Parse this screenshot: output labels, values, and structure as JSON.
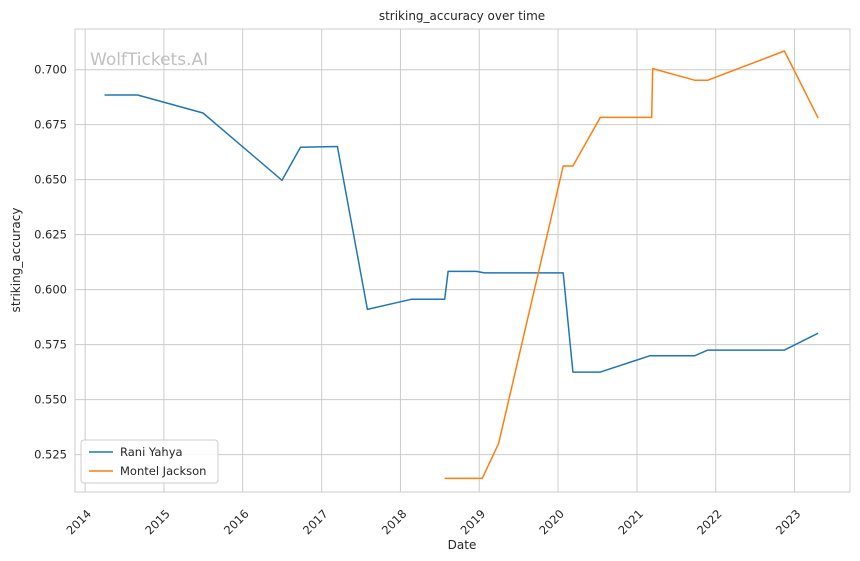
{
  "chart_data": {
    "type": "line",
    "title": "striking_accuracy over time",
    "xlabel": "Date",
    "ylabel": "striking_accuracy",
    "watermark": "WolfTickets.AI",
    "x_ticks": [
      "2014",
      "2015",
      "2016",
      "2017",
      "2018",
      "2019",
      "2020",
      "2021",
      "2022",
      "2023"
    ],
    "y_ticks": [
      "0.525",
      "0.550",
      "0.575",
      "0.600",
      "0.625",
      "0.650",
      "0.675",
      "0.700"
    ],
    "ylim": [
      0.508,
      0.7185
    ],
    "xlim": [
      "2013-11-15",
      "2023-09-15"
    ],
    "grid": true,
    "legend_position": "lower-left",
    "colors": {
      "Rani Yahya": "#1f77b4",
      "Montel Jackson": "#ff7f0e"
    },
    "series": [
      {
        "name": "Rani Yahya",
        "points": [
          {
            "x": "2014-04-01",
            "y": 0.6885
          },
          {
            "x": "2014-09-01",
            "y": 0.6885
          },
          {
            "x": "2015-07-01",
            "y": 0.6803
          },
          {
            "x": "2016-07-01",
            "y": 0.6497
          },
          {
            "x": "2016-09-25",
            "y": 0.6647
          },
          {
            "x": "2017-03-15",
            "y": 0.6651
          },
          {
            "x": "2017-08-01",
            "y": 0.591
          },
          {
            "x": "2018-02-20",
            "y": 0.5956
          },
          {
            "x": "2018-07-25",
            "y": 0.5956
          },
          {
            "x": "2018-08-10",
            "y": 0.6083
          },
          {
            "x": "2018-12-20",
            "y": 0.6083
          },
          {
            "x": "2019-01-25",
            "y": 0.6076
          },
          {
            "x": "2019-02-10",
            "y": 0.6076
          },
          {
            "x": "2020-01-25",
            "y": 0.6076
          },
          {
            "x": "2020-03-10",
            "y": 0.5625
          },
          {
            "x": "2020-07-15",
            "y": 0.5625
          },
          {
            "x": "2021-03-01",
            "y": 0.5699
          },
          {
            "x": "2021-09-25",
            "y": 0.5699
          },
          {
            "x": "2021-11-25",
            "y": 0.5725
          },
          {
            "x": "2022-11-15",
            "y": 0.5725
          },
          {
            "x": "2023-04-20",
            "y": 0.5802
          }
        ]
      },
      {
        "name": "Montel Jackson",
        "points": [
          {
            "x": "2018-07-25",
            "y": 0.5142
          },
          {
            "x": "2019-01-15",
            "y": 0.5142
          },
          {
            "x": "2019-04-01",
            "y": 0.53
          },
          {
            "x": "2020-01-25",
            "y": 0.6562
          },
          {
            "x": "2020-03-10",
            "y": 0.6562
          },
          {
            "x": "2020-07-15",
            "y": 0.6783
          },
          {
            "x": "2021-03-10",
            "y": 0.6783
          },
          {
            "x": "2021-03-15",
            "y": 0.7005
          },
          {
            "x": "2021-09-25",
            "y": 0.6952
          },
          {
            "x": "2021-11-25",
            "y": 0.6952
          },
          {
            "x": "2022-11-15",
            "y": 0.7085
          },
          {
            "x": "2023-04-20",
            "y": 0.6781
          }
        ]
      }
    ]
  }
}
